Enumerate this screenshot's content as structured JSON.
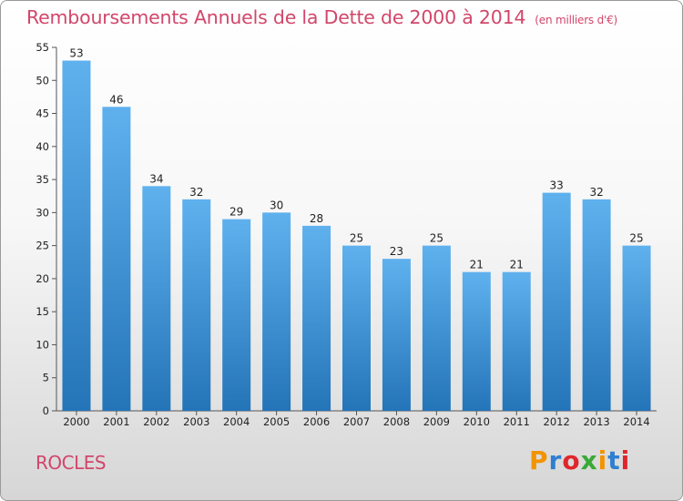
{
  "title": "Remboursements Annuels de la Dette de 2000 à 2014",
  "unit_note": "(en milliers d'€)",
  "commune": "ROCLES",
  "logo": {
    "text": "Proxiti",
    "colors": [
      "#f29400",
      "#2f7fd1",
      "#e0262b",
      "#3aa935",
      "#f29400",
      "#2f7fd1",
      "#e0262b"
    ]
  },
  "chart_data": {
    "type": "bar",
    "title": "Remboursements Annuels de la Dette de 2000 à 2014",
    "subtitle": "(en milliers d'€)",
    "categories": [
      "2000",
      "2001",
      "2002",
      "2003",
      "2004",
      "2005",
      "2006",
      "2007",
      "2008",
      "2009",
      "2010",
      "2011",
      "2012",
      "2013",
      "2014"
    ],
    "values": [
      53,
      46,
      34,
      32,
      29,
      30,
      28,
      25,
      23,
      25,
      21,
      21,
      33,
      32,
      25
    ],
    "ylim": [
      0,
      55
    ],
    "yticks": [
      0,
      5,
      10,
      15,
      20,
      25,
      30,
      35,
      40,
      45,
      50,
      55
    ],
    "grid": false,
    "bar_color": "#3d92d8"
  }
}
